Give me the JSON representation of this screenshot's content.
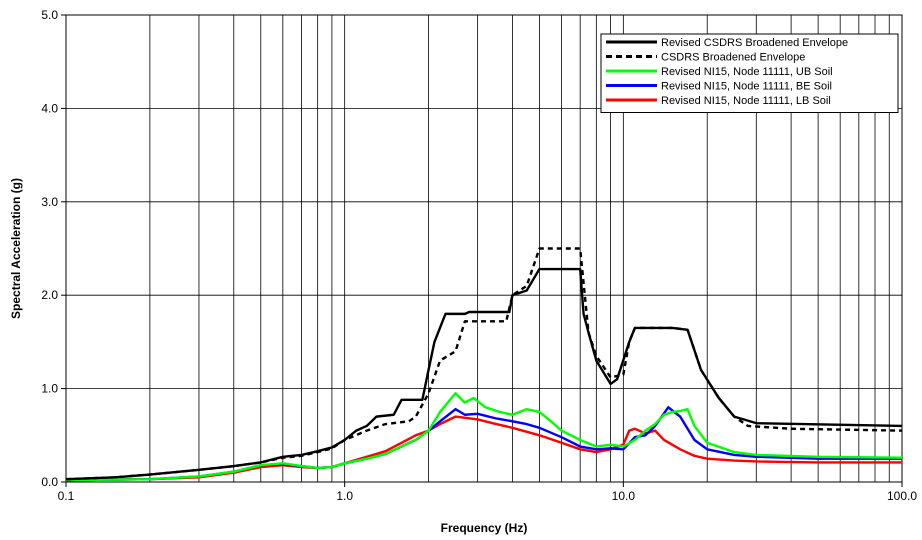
{
  "chart_data": {
    "type": "line",
    "title": "",
    "xlabel": "Frequency (Hz)",
    "ylabel": "Spectral Acceleration (g)",
    "xscale": "log",
    "xlim": [
      0.1,
      100
    ],
    "ylim": [
      0,
      5
    ],
    "x_ticks": [
      0.1,
      1,
      10,
      100
    ],
    "x_tick_labels": [
      "0.1",
      "1.0",
      "10.0",
      "100.0"
    ],
    "y_ticks": [
      0,
      1,
      2,
      3,
      4,
      5
    ],
    "y_tick_labels": [
      "0.0",
      "1.0",
      "2.0",
      "3.0",
      "4.0",
      "5.0"
    ],
    "grid": "vertical log grid lines and horizontal major lines",
    "legend_position": "top-right",
    "series": [
      {
        "name": "Revised CSDRS Broadened Envelope",
        "color": "#000000",
        "style": "solid",
        "points": [
          [
            0.1,
            0.03
          ],
          [
            0.15,
            0.05
          ],
          [
            0.2,
            0.08
          ],
          [
            0.3,
            0.13
          ],
          [
            0.4,
            0.17
          ],
          [
            0.5,
            0.21
          ],
          [
            0.6,
            0.27
          ],
          [
            0.7,
            0.29
          ],
          [
            0.8,
            0.33
          ],
          [
            0.9,
            0.37
          ],
          [
            1.0,
            0.45
          ],
          [
            1.1,
            0.55
          ],
          [
            1.2,
            0.6
          ],
          [
            1.3,
            0.7
          ],
          [
            1.5,
            0.72
          ],
          [
            1.6,
            0.88
          ],
          [
            1.9,
            0.88
          ],
          [
            2.0,
            1.2
          ],
          [
            2.1,
            1.5
          ],
          [
            2.3,
            1.8
          ],
          [
            2.7,
            1.8
          ],
          [
            2.8,
            1.82
          ],
          [
            3.5,
            1.82
          ],
          [
            3.9,
            1.82
          ],
          [
            4.0,
            2.0
          ],
          [
            4.5,
            2.05
          ],
          [
            5.0,
            2.28
          ],
          [
            7.0,
            2.28
          ],
          [
            7.2,
            1.8
          ],
          [
            7.5,
            1.6
          ],
          [
            8.0,
            1.3
          ],
          [
            9.0,
            1.05
          ],
          [
            9.5,
            1.1
          ],
          [
            10.5,
            1.5
          ],
          [
            11.0,
            1.65
          ],
          [
            15.0,
            1.65
          ],
          [
            17.0,
            1.63
          ],
          [
            19.0,
            1.2
          ],
          [
            22.0,
            0.9
          ],
          [
            25.0,
            0.7
          ],
          [
            30.0,
            0.63
          ],
          [
            100.0,
            0.6
          ]
        ]
      },
      {
        "name": "CSDRS Broadened Envelope",
        "color": "#000000",
        "style": "dashed",
        "points": [
          [
            0.1,
            0.03
          ],
          [
            0.15,
            0.05
          ],
          [
            0.2,
            0.08
          ],
          [
            0.3,
            0.13
          ],
          [
            0.4,
            0.17
          ],
          [
            0.5,
            0.21
          ],
          [
            0.6,
            0.26
          ],
          [
            0.7,
            0.28
          ],
          [
            0.8,
            0.32
          ],
          [
            0.9,
            0.36
          ],
          [
            1.0,
            0.45
          ],
          [
            1.2,
            0.55
          ],
          [
            1.4,
            0.62
          ],
          [
            1.7,
            0.65
          ],
          [
            1.8,
            0.7
          ],
          [
            2.0,
            0.95
          ],
          [
            2.2,
            1.3
          ],
          [
            2.5,
            1.4
          ],
          [
            2.7,
            1.72
          ],
          [
            3.8,
            1.72
          ],
          [
            4.0,
            2.0
          ],
          [
            4.5,
            2.1
          ],
          [
            5.0,
            2.5
          ],
          [
            7.0,
            2.5
          ],
          [
            7.5,
            1.6
          ],
          [
            8.0,
            1.35
          ],
          [
            9.0,
            1.12
          ],
          [
            10.0,
            1.15
          ],
          [
            10.5,
            1.5
          ],
          [
            11.0,
            1.65
          ],
          [
            15.0,
            1.65
          ],
          [
            17.0,
            1.63
          ],
          [
            19.0,
            1.2
          ],
          [
            22.0,
            0.9
          ],
          [
            25.0,
            0.7
          ],
          [
            28.0,
            0.6
          ],
          [
            40.0,
            0.57
          ],
          [
            100.0,
            0.55
          ]
        ]
      },
      {
        "name": "Revised NI15, Node 11111, UB Soil",
        "color": "#00ff00",
        "style": "solid",
        "points": [
          [
            0.1,
            0.02
          ],
          [
            0.2,
            0.03
          ],
          [
            0.3,
            0.06
          ],
          [
            0.4,
            0.11
          ],
          [
            0.5,
            0.18
          ],
          [
            0.6,
            0.2
          ],
          [
            0.7,
            0.17
          ],
          [
            0.8,
            0.15
          ],
          [
            0.9,
            0.16
          ],
          [
            1.0,
            0.2
          ],
          [
            1.2,
            0.25
          ],
          [
            1.4,
            0.3
          ],
          [
            1.6,
            0.38
          ],
          [
            1.8,
            0.45
          ],
          [
            2.0,
            0.55
          ],
          [
            2.2,
            0.75
          ],
          [
            2.5,
            0.95
          ],
          [
            2.7,
            0.85
          ],
          [
            2.9,
            0.9
          ],
          [
            3.2,
            0.8
          ],
          [
            3.6,
            0.75
          ],
          [
            4.0,
            0.72
          ],
          [
            4.5,
            0.78
          ],
          [
            5.0,
            0.75
          ],
          [
            5.5,
            0.65
          ],
          [
            6.0,
            0.55
          ],
          [
            7.0,
            0.45
          ],
          [
            8.0,
            0.38
          ],
          [
            9.0,
            0.4
          ],
          [
            10.0,
            0.38
          ],
          [
            11.0,
            0.45
          ],
          [
            12.0,
            0.55
          ],
          [
            13.0,
            0.62
          ],
          [
            14.0,
            0.72
          ],
          [
            15.0,
            0.75
          ],
          [
            16.0,
            0.76
          ],
          [
            17.0,
            0.78
          ],
          [
            18.0,
            0.6
          ],
          [
            20.0,
            0.42
          ],
          [
            25.0,
            0.32
          ],
          [
            30.0,
            0.29
          ],
          [
            50.0,
            0.27
          ],
          [
            100.0,
            0.26
          ]
        ]
      },
      {
        "name": "Revised NI15, Node 11111, BE Soil",
        "color": "#0000ff",
        "style": "solid",
        "points": [
          [
            0.1,
            0.02
          ],
          [
            0.2,
            0.03
          ],
          [
            0.3,
            0.06
          ],
          [
            0.4,
            0.11
          ],
          [
            0.5,
            0.18
          ],
          [
            0.6,
            0.19
          ],
          [
            0.7,
            0.17
          ],
          [
            0.8,
            0.15
          ],
          [
            0.9,
            0.16
          ],
          [
            1.0,
            0.2
          ],
          [
            1.2,
            0.25
          ],
          [
            1.4,
            0.3
          ],
          [
            1.6,
            0.38
          ],
          [
            1.8,
            0.45
          ],
          [
            2.0,
            0.55
          ],
          [
            2.2,
            0.65
          ],
          [
            2.5,
            0.78
          ],
          [
            2.7,
            0.72
          ],
          [
            3.0,
            0.73
          ],
          [
            3.5,
            0.68
          ],
          [
            4.0,
            0.65
          ],
          [
            4.5,
            0.62
          ],
          [
            5.0,
            0.58
          ],
          [
            6.0,
            0.48
          ],
          [
            7.0,
            0.38
          ],
          [
            8.0,
            0.35
          ],
          [
            9.0,
            0.36
          ],
          [
            10.0,
            0.35
          ],
          [
            11.0,
            0.48
          ],
          [
            12.0,
            0.5
          ],
          [
            13.0,
            0.6
          ],
          [
            14.5,
            0.8
          ],
          [
            16.0,
            0.7
          ],
          [
            18.0,
            0.45
          ],
          [
            20.0,
            0.35
          ],
          [
            25.0,
            0.29
          ],
          [
            30.0,
            0.27
          ],
          [
            50.0,
            0.25
          ],
          [
            100.0,
            0.25
          ]
        ]
      },
      {
        "name": "Revised NI15, Node 11111, LB Soil",
        "color": "#ff0000",
        "style": "solid",
        "points": [
          [
            0.1,
            0.02
          ],
          [
            0.2,
            0.03
          ],
          [
            0.3,
            0.05
          ],
          [
            0.4,
            0.1
          ],
          [
            0.5,
            0.16
          ],
          [
            0.6,
            0.18
          ],
          [
            0.7,
            0.16
          ],
          [
            0.8,
            0.15
          ],
          [
            0.9,
            0.16
          ],
          [
            1.0,
            0.2
          ],
          [
            1.2,
            0.27
          ],
          [
            1.4,
            0.33
          ],
          [
            1.6,
            0.42
          ],
          [
            1.8,
            0.5
          ],
          [
            2.0,
            0.55
          ],
          [
            2.2,
            0.62
          ],
          [
            2.5,
            0.7
          ],
          [
            3.0,
            0.67
          ],
          [
            3.5,
            0.62
          ],
          [
            4.0,
            0.58
          ],
          [
            5.0,
            0.5
          ],
          [
            6.0,
            0.42
          ],
          [
            7.0,
            0.35
          ],
          [
            8.0,
            0.32
          ],
          [
            9.0,
            0.35
          ],
          [
            10.0,
            0.4
          ],
          [
            10.5,
            0.55
          ],
          [
            11.0,
            0.57
          ],
          [
            12.0,
            0.52
          ],
          [
            13.0,
            0.55
          ],
          [
            14.0,
            0.45
          ],
          [
            16.0,
            0.35
          ],
          [
            18.0,
            0.28
          ],
          [
            20.0,
            0.25
          ],
          [
            25.0,
            0.23
          ],
          [
            30.0,
            0.22
          ],
          [
            50.0,
            0.21
          ],
          [
            100.0,
            0.21
          ]
        ]
      }
    ]
  }
}
